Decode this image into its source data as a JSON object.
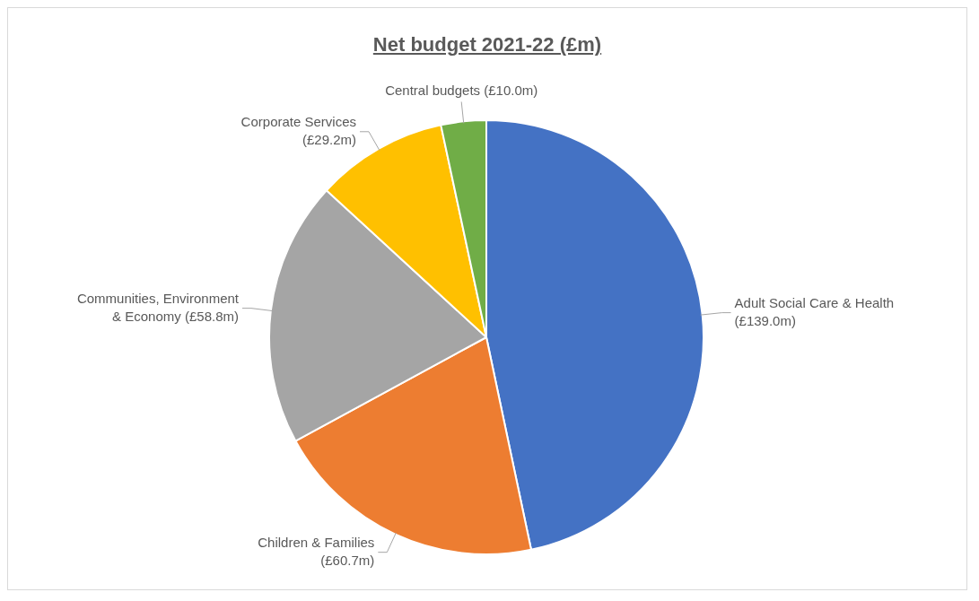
{
  "chart_data": {
    "type": "pie",
    "title": "Net budget 2021-22 (£m)",
    "categories": [
      "Adult Social Care & Health (£139.0m)",
      "Children & Families (£60.7m)",
      "Communities, Environment & Economy (£58.8m)",
      "Corporate Services (£29.2m)",
      "Central budgets (£10.0m)"
    ],
    "values": [
      139.0,
      60.7,
      58.8,
      29.2,
      10.0
    ],
    "colors": [
      "#4472c4",
      "#ed7d31",
      "#a5a5a5",
      "#ffc000",
      "#70ad47"
    ],
    "legend": false
  }
}
